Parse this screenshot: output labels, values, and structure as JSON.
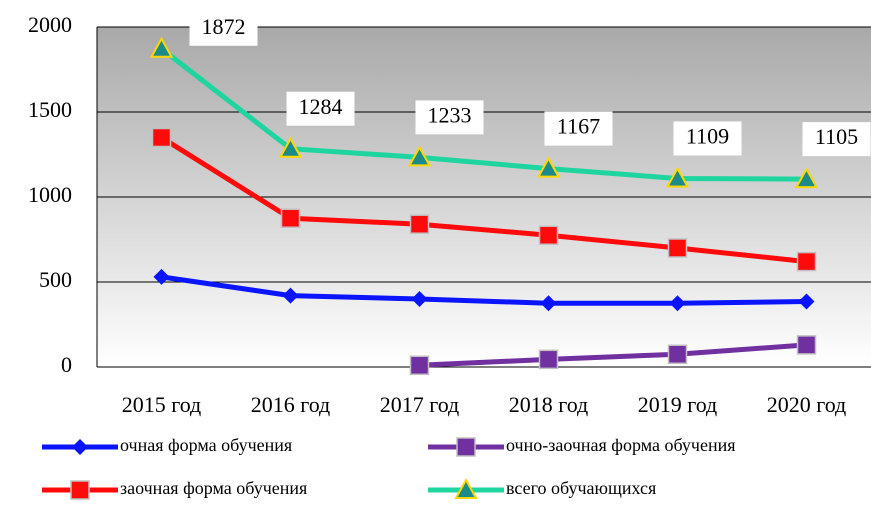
{
  "chart_data": {
    "type": "line",
    "categories": [
      "2015 год",
      "2016 год",
      "2017 год",
      "2018 год",
      "2019 год",
      "2020 год"
    ],
    "series": [
      {
        "name": "очная форма обучения",
        "color": "#0a14ff",
        "marker": "diamond",
        "values": [
          530,
          420,
          400,
          375,
          375,
          385
        ]
      },
      {
        "name": "очно-заочная форма обучения",
        "color": "#7030a0",
        "marker": "square",
        "values": [
          null,
          null,
          10,
          45,
          75,
          130
        ]
      },
      {
        "name": "заочная форма обучения",
        "color": "#ff0a0a",
        "marker": "square",
        "values": [
          1350,
          875,
          840,
          775,
          700,
          620
        ]
      },
      {
        "name": "всего обучающихся",
        "color": "#1ed5a0",
        "marker": "triangle",
        "values": [
          1872,
          1284,
          1233,
          1167,
          1109,
          1105
        ]
      }
    ],
    "labeled_series": 3,
    "ylim": [
      0,
      2000
    ],
    "yticks": [
      0,
      500,
      1000,
      1500,
      2000
    ],
    "grid": true
  }
}
